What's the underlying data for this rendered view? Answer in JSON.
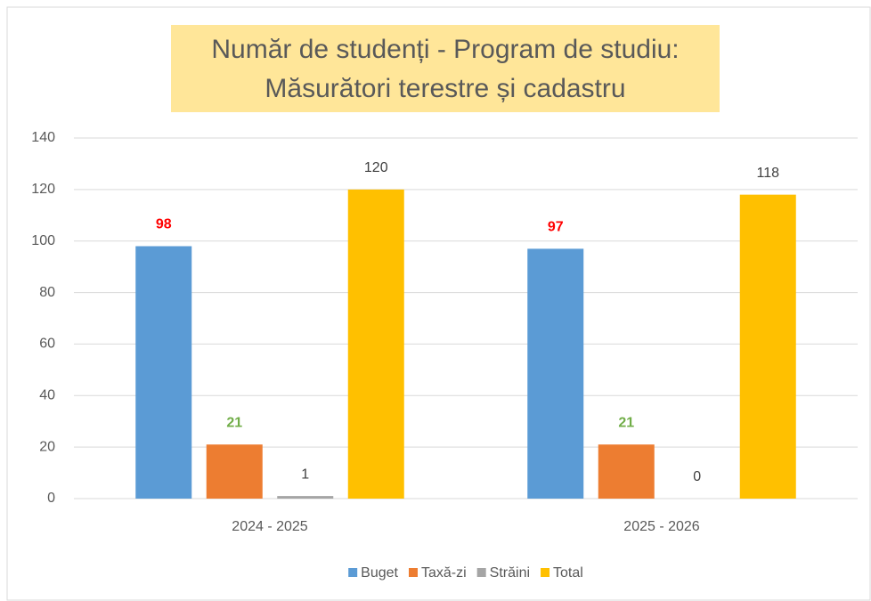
{
  "chart_data": {
    "type": "bar",
    "title": [
      "Număr de studenți - Program de studiu:",
      "Măsurători terestre și cadastru"
    ],
    "categories": [
      "2024 - 2025",
      "2025 - 2026"
    ],
    "series": [
      {
        "name": "Buget",
        "color": "#5b9bd5",
        "label_color": "#ff0000",
        "values": [
          98,
          97
        ]
      },
      {
        "name": "Taxă-zi",
        "color": "#ed7d31",
        "label_color": "#70ad47",
        "values": [
          21,
          21
        ]
      },
      {
        "name": "Străini",
        "color": "#a5a5a5",
        "label_color": "#404040",
        "values": [
          1,
          0
        ]
      },
      {
        "name": "Total",
        "color": "#ffc000",
        "label_color": "#404040",
        "values": [
          120,
          118
        ]
      }
    ],
    "ylim": [
      0,
      140
    ],
    "yticks": [
      0,
      20,
      40,
      60,
      80,
      100,
      120,
      140
    ],
    "grid": true,
    "legend": "bottom"
  }
}
